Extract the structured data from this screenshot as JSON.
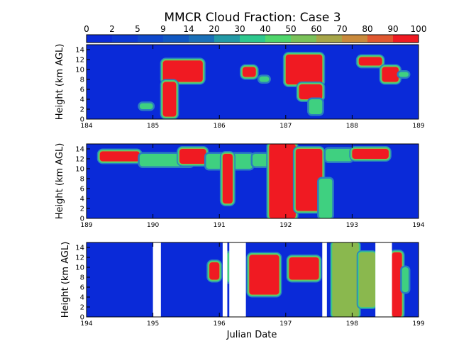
{
  "chart_data": {
    "type": "heatmap",
    "title": "MMCR Cloud Fraction: Case 3",
    "xlabel": "Julian Date",
    "ylabel": "Height (km AGL)",
    "ylim": [
      0,
      15
    ],
    "colorbar": {
      "ticks": [
        "0",
        "2",
        "5",
        "9",
        "14",
        "20",
        "30",
        "40",
        "50",
        "60",
        "70",
        "80",
        "90",
        "100"
      ],
      "colors": [
        "#0a2ad8",
        "#0b38d4",
        "#0e48cc",
        "#1058c2",
        "#1a70b8",
        "#239aa6",
        "#2ec88e",
        "#4fd66c",
        "#7ac25a",
        "#a7a649",
        "#c98a3c",
        "#e05830",
        "#f01a22"
      ]
    },
    "value_colors": {
      "background": "#0a2ad8",
      "low": "#2a7ec0",
      "mid": "#3fd080",
      "edge": "#8ab84e",
      "core": "#f01a22",
      "missing": "#ffffff"
    },
    "panels": [
      {
        "xlim": [
          184,
          189
        ],
        "xticks": [
          "184",
          "185",
          "186",
          "187",
          "188",
          "189"
        ],
        "yticks": [
          "0",
          "2",
          "4",
          "6",
          "8",
          "10",
          "12",
          "14"
        ],
        "missing": [],
        "clouds": [
          {
            "x0": 185.15,
            "x1": 185.75,
            "y0": 7.5,
            "y1": 11.8,
            "level": "core"
          },
          {
            "x0": 185.15,
            "x1": 185.35,
            "y0": 0.5,
            "y1": 7.5,
            "level": "core"
          },
          {
            "x0": 184.8,
            "x1": 185.0,
            "y0": 2.0,
            "y1": 3.2,
            "level": "mid"
          },
          {
            "x0": 186.35,
            "x1": 186.55,
            "y0": 8.5,
            "y1": 10.5,
            "level": "core"
          },
          {
            "x0": 186.6,
            "x1": 186.75,
            "y0": 7.5,
            "y1": 8.6,
            "level": "mid"
          },
          {
            "x0": 187.0,
            "x1": 187.55,
            "y0": 7.0,
            "y1": 13.0,
            "level": "core"
          },
          {
            "x0": 187.2,
            "x1": 187.55,
            "y0": 4.0,
            "y1": 7.0,
            "level": "core"
          },
          {
            "x0": 187.35,
            "x1": 187.55,
            "y0": 1.0,
            "y1": 4.0,
            "level": "mid"
          },
          {
            "x0": 188.1,
            "x1": 188.45,
            "y0": 10.8,
            "y1": 12.5,
            "level": "core"
          },
          {
            "x0": 188.45,
            "x1": 188.7,
            "y0": 7.5,
            "y1": 10.5,
            "level": "core"
          },
          {
            "x0": 188.7,
            "x1": 188.85,
            "y0": 8.5,
            "y1": 9.5,
            "level": "mid"
          }
        ]
      },
      {
        "xlim": [
          189,
          194
        ],
        "xticks": [
          "189",
          "190",
          "191",
          "192",
          "193",
          "194"
        ],
        "yticks": [
          "0",
          "2",
          "4",
          "6",
          "8",
          "10",
          "12",
          "14"
        ],
        "missing": [],
        "clouds": [
          {
            "x0": 189.2,
            "x1": 189.8,
            "y0": 11.5,
            "y1": 13.5,
            "level": "core"
          },
          {
            "x0": 189.8,
            "x1": 190.6,
            "y0": 10.5,
            "y1": 13.0,
            "level": "mid"
          },
          {
            "x0": 190.4,
            "x1": 190.8,
            "y0": 11.0,
            "y1": 14.0,
            "level": "core"
          },
          {
            "x0": 190.8,
            "x1": 191.5,
            "y0": 10.0,
            "y1": 13.0,
            "level": "mid"
          },
          {
            "x0": 191.05,
            "x1": 191.2,
            "y0": 3.0,
            "y1": 13.0,
            "level": "core"
          },
          {
            "x0": 191.5,
            "x1": 191.8,
            "y0": 10.5,
            "y1": 13.0,
            "level": "mid"
          },
          {
            "x0": 191.75,
            "x1": 192.15,
            "y0": 0.0,
            "y1": 15.0,
            "level": "core"
          },
          {
            "x0": 192.15,
            "x1": 192.55,
            "y0": 1.5,
            "y1": 14.0,
            "level": "core"
          },
          {
            "x0": 192.5,
            "x1": 192.7,
            "y0": 0.0,
            "y1": 8.0,
            "level": "mid"
          },
          {
            "x0": 192.6,
            "x1": 193.0,
            "y0": 11.5,
            "y1": 14.0,
            "level": "mid"
          },
          {
            "x0": 193.0,
            "x1": 193.55,
            "y0": 12.0,
            "y1": 14.0,
            "level": "core"
          }
        ]
      },
      {
        "xlim": [
          194,
          199
        ],
        "xticks": [
          "194",
          "195",
          "196",
          "197",
          "198",
          "199"
        ],
        "yticks": [
          "0",
          "2",
          "4",
          "6",
          "8",
          "10",
          "12",
          "14"
        ],
        "missing": [
          [
            195.0,
            195.12
          ],
          [
            196.05,
            196.12
          ],
          [
            196.15,
            196.4
          ],
          [
            197.55,
            197.62
          ],
          [
            198.35,
            198.6
          ]
        ],
        "clouds": [
          {
            "x0": 195.85,
            "x1": 196.0,
            "y0": 7.5,
            "y1": 11.0,
            "level": "core"
          },
          {
            "x0": 196.12,
            "x1": 196.15,
            "y0": 7.0,
            "y1": 13.0,
            "level": "mid"
          },
          {
            "x0": 196.45,
            "x1": 196.9,
            "y0": 4.5,
            "y1": 12.5,
            "level": "core"
          },
          {
            "x0": 197.05,
            "x1": 197.5,
            "y0": 7.5,
            "y1": 12.0,
            "level": "core"
          },
          {
            "x0": 197.7,
            "x1": 198.1,
            "y0": 0.0,
            "y1": 15.0,
            "level": "edge"
          },
          {
            "x0": 198.1,
            "x1": 198.35,
            "y0": 2.0,
            "y1": 13.0,
            "level": "edge"
          },
          {
            "x0": 198.6,
            "x1": 198.75,
            "y0": 0.0,
            "y1": 13.0,
            "level": "core"
          },
          {
            "x0": 198.75,
            "x1": 198.85,
            "y0": 5.0,
            "y1": 10.0,
            "level": "mid"
          }
        ]
      }
    ]
  }
}
